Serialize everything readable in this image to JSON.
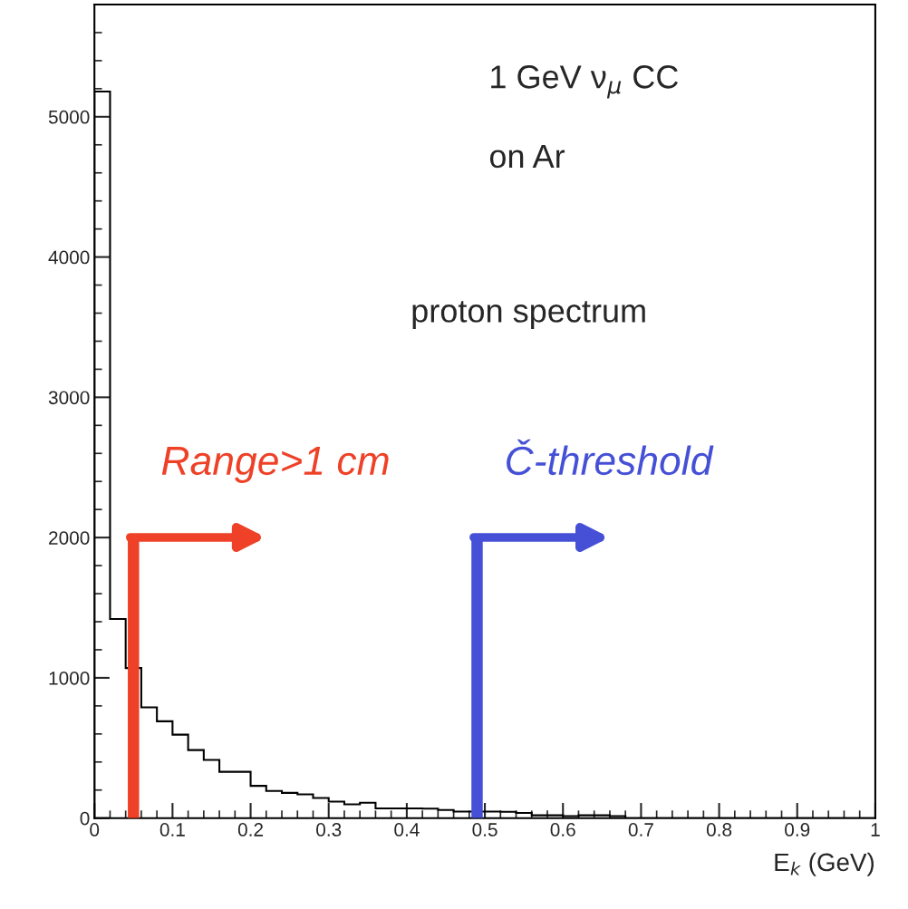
{
  "chart_data": {
    "type": "histogram",
    "bins": [
      0,
      0.02,
      0.04,
      0.06,
      0.08,
      0.1,
      0.12,
      0.14,
      0.16,
      0.18,
      0.2,
      0.22,
      0.24,
      0.26,
      0.28,
      0.3,
      0.32,
      0.34,
      0.36,
      0.38,
      0.4,
      0.42,
      0.44,
      0.46,
      0.48,
      0.5,
      0.52,
      0.54,
      0.56,
      0.58,
      0.6,
      0.62,
      0.64,
      0.66,
      0.68,
      0.7,
      0.72,
      0.74,
      0.76,
      0.78,
      0.8,
      0.82,
      0.84,
      0.86,
      0.88,
      0.9,
      0.92,
      0.94,
      0.96,
      0.98,
      1
    ],
    "values": [
      5180,
      1420,
      1070,
      790,
      690,
      595,
      485,
      415,
      330,
      330,
      230,
      193,
      180,
      169,
      143,
      118,
      98,
      109,
      69,
      69,
      69,
      67,
      58,
      47,
      47,
      47,
      45,
      37,
      20,
      20,
      14,
      20,
      20,
      14,
      0,
      0,
      0,
      0,
      0,
      0,
      0,
      0,
      0,
      0,
      0,
      0,
      0,
      0,
      0,
      0
    ],
    "color": "#000000",
    "xlabel": "E$_{k}$ (GeV)",
    "xlim": [
      0,
      1
    ],
    "xticks": [
      0,
      0.1,
      0.2,
      0.3,
      0.4,
      0.5,
      0.6,
      0.7,
      0.8,
      0.9,
      1
    ],
    "ylim": [
      0,
      5800
    ],
    "yticks": [
      0,
      1000,
      2000,
      3000,
      4000,
      5000
    ],
    "annotations": [
      "1 GeV ν$_{μ}$ CC",
      "on Ar",
      "proton spectrum"
    ],
    "ref_lines": [
      {
        "axis": "x",
        "value": 0.05,
        "label": "Range>1 cm",
        "color": "#ee4127"
      },
      {
        "axis": "x",
        "value": 0.49,
        "label": "Č-threshold",
        "color": "#4550d6"
      }
    ],
    "grid": false,
    "legend": false
  }
}
